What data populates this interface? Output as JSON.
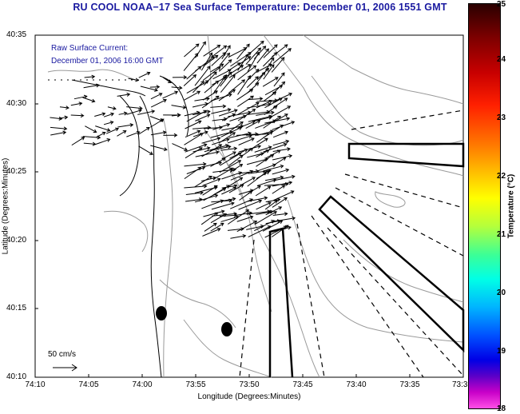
{
  "title": "RU COOL  NOAA−17  Sea Surface Temperature:  December 01, 2006 1551 GMT",
  "annotation_line1": "Raw Surface Current:",
  "annotation_line2": "December 01, 2006 16:00 GMT",
  "scale_label": "50 cm/s",
  "xlabel": "Longitude (Degrees:Minutes)",
  "ylabel": "Latitude (Degrees:Minutes)",
  "x_ticks": [
    "74:10",
    "74:05",
    "74:00",
    "73:55",
    "73:50",
    "73:45",
    "73:40",
    "73:35",
    "73:3"
  ],
  "y_ticks": [
    "40:35",
    "40:30",
    "40:25",
    "40:20",
    "40:15",
    "40:10"
  ],
  "colorbar": {
    "label": "Temperature (°C)",
    "ticks": [
      "25",
      "24",
      "23",
      "22",
      "21",
      "20",
      "19",
      "18"
    ],
    "range": [
      18,
      25
    ]
  },
  "colors": {
    "title": "#1a1aa0",
    "land": "#ffffff",
    "contour": "#9a9a9a",
    "vector": "#000000"
  }
}
